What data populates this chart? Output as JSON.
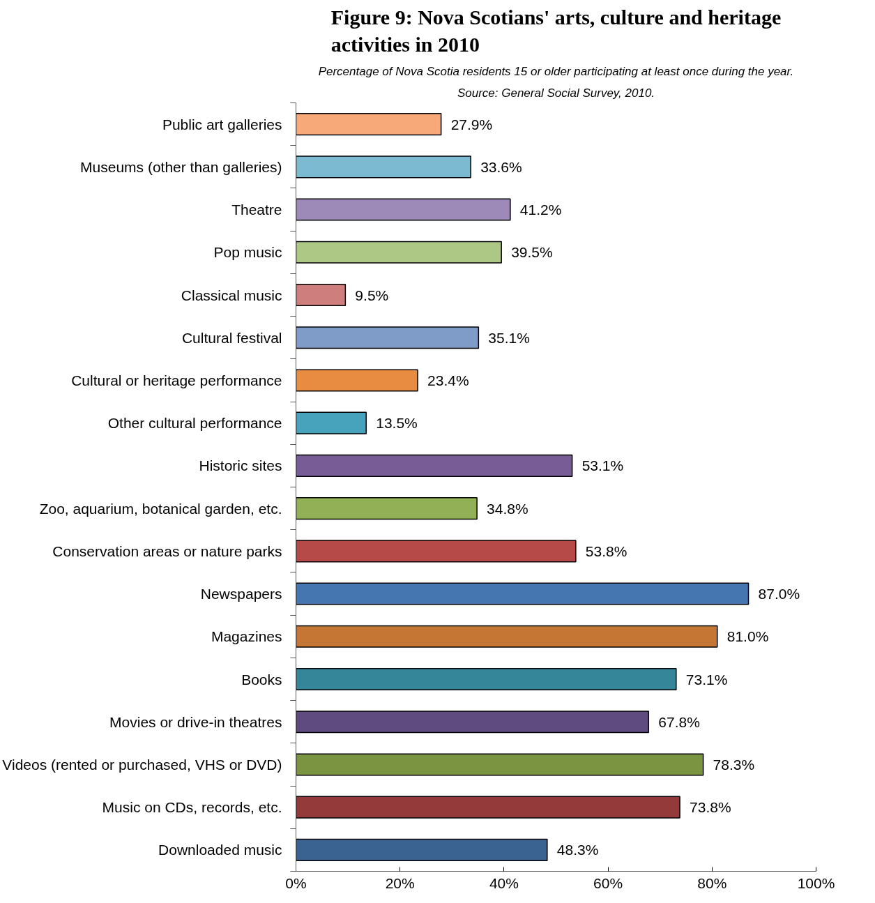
{
  "chart_data": {
    "type": "bar",
    "orientation": "horizontal",
    "title": "Figure 9: Nova Scotians' arts, culture and heritage\nactivities in 2010",
    "subtitle": "Percentage of Nova Scotia residents 15 or older participating at least once during the year.",
    "annotations": [
      "Source: General Social Survey, 2010."
    ],
    "categories": [
      "Public art galleries",
      "Museums (other than galleries)",
      "Theatre",
      "Pop music",
      "Classical music",
      "Cultural festival",
      "Cultural or heritage performance",
      "Other cultural performance",
      "Historic sites",
      "Zoo, aquarium, botanical garden, etc.",
      "Conservation areas or nature parks",
      "Newspapers",
      "Magazines",
      "Books",
      "Movies or drive-in theatres",
      "Videos (rented or purchased, VHS or DVD)",
      "Music on CDs, records, etc.",
      "Downloaded music"
    ],
    "values": [
      27.9,
      33.6,
      41.2,
      39.5,
      9.5,
      35.1,
      23.4,
      13.5,
      53.1,
      34.8,
      53.8,
      87.0,
      81.0,
      73.1,
      67.8,
      78.3,
      73.8,
      48.3
    ],
    "value_labels": [
      "27.9%",
      "33.6%",
      "41.2%",
      "39.5%",
      "9.5%",
      "35.1%",
      "23.4%",
      "13.5%",
      "53.1%",
      "34.8%",
      "53.8%",
      "87.0%",
      "81.0%",
      "73.1%",
      "67.8%",
      "78.3%",
      "73.8%",
      "48.3%"
    ],
    "colors": [
      "#f8a97a",
      "#7bbad0",
      "#9e8ab8",
      "#adc785",
      "#cd7e7d",
      "#7f9cc9",
      "#e88c42",
      "#47a2bb",
      "#785c95",
      "#92b055",
      "#b54a48",
      "#4676b0",
      "#c67634",
      "#36869a",
      "#5f4b80",
      "#7a9442",
      "#953a3a",
      "#3b6392"
    ],
    "xlim": [
      0,
      100
    ],
    "xticks": [
      {
        "value": 0,
        "label": "0%"
      },
      {
        "value": 20,
        "label": "20%"
      },
      {
        "value": 40,
        "label": "40%"
      },
      {
        "value": 60,
        "label": "60%"
      },
      {
        "value": 80,
        "label": "80%"
      },
      {
        "value": 100,
        "label": "100%"
      }
    ],
    "grid": false
  }
}
